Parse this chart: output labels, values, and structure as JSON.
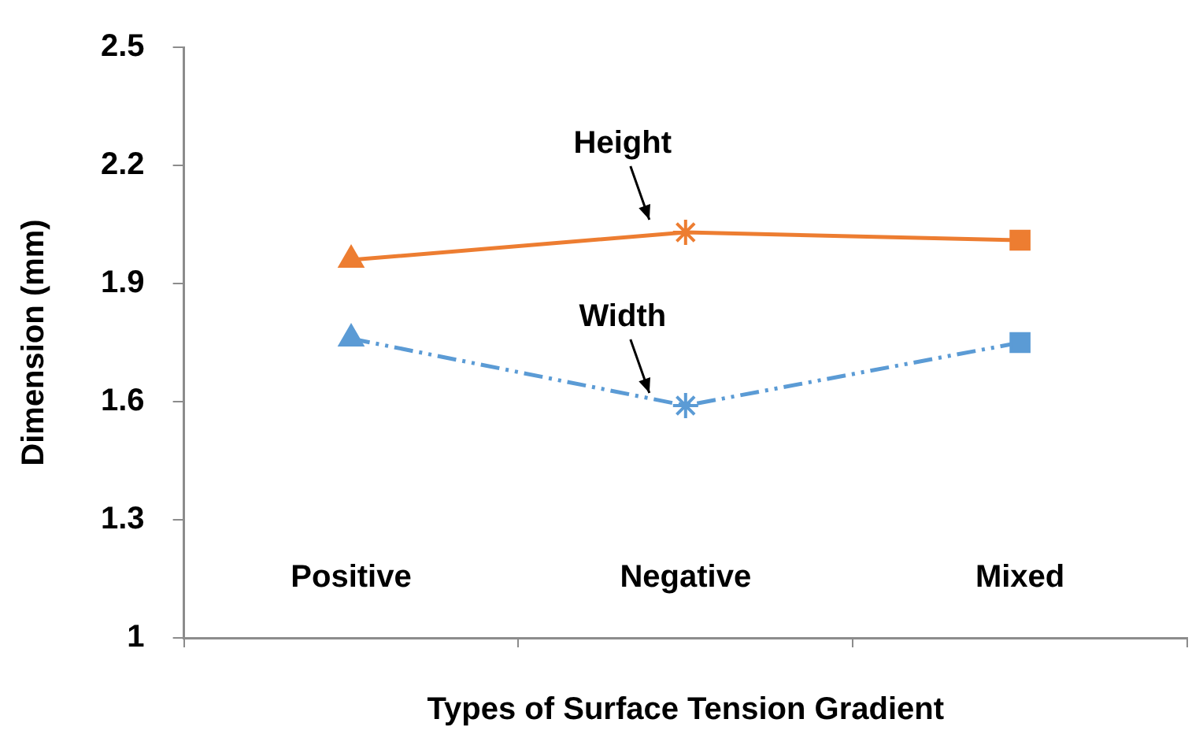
{
  "chart_data": {
    "type": "line",
    "xlabel": "Types of Surface Tension Gradient",
    "ylabel": "Dimension (mm)",
    "categories": [
      "Positive",
      "Negative",
      "Mixed"
    ],
    "series": [
      {
        "color": "#ed7d31",
        "values": [
          1.96,
          2.03,
          2.01
        ],
        "marker": [
          "triangle",
          "star",
          "square"
        ],
        "line_style": "solid"
      },
      {
        "color": "#5b9bd5",
        "values": [
          1.76,
          1.59,
          1.75
        ],
        "marker": [
          "triangle",
          "star",
          "square"
        ],
        "line_style": "dashed"
      }
    ],
    "ylim": [
      1,
      2.5
    ],
    "yticks": [
      1,
      1.3,
      1.6,
      1.9,
      2.2,
      2.5
    ],
    "grid": false,
    "legend": false,
    "annotations": [
      {
        "text": "Height",
        "x": "Negative",
        "y": 2.03
      },
      {
        "text": "Width",
        "x": "Negative",
        "y": 1.59
      }
    ]
  }
}
